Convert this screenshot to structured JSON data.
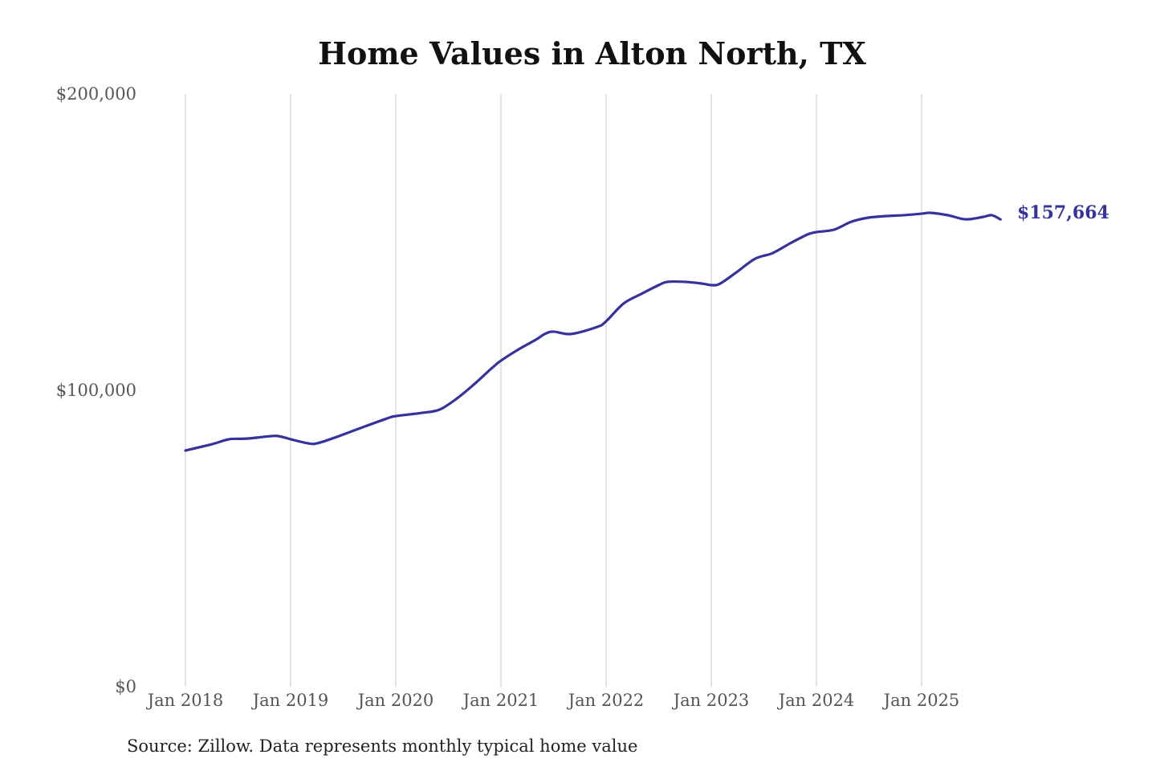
{
  "chart_data": {
    "type": "line",
    "title": "Home Values in Alton North, TX",
    "xlabel": "",
    "ylabel": "",
    "source": "Source: Zillow. Data represents monthly typical home value",
    "ylim": [
      0,
      200000
    ],
    "yticks": [
      0,
      100000,
      200000
    ],
    "ytick_labels": [
      "$0",
      "$100,000",
      "$200,000"
    ],
    "xlim": [
      "2018-01",
      "2025-10"
    ],
    "xtick_labels": [
      "Jan 2018",
      "Jan 2019",
      "Jan 2020",
      "Jan 2021",
      "Jan 2022",
      "Jan 2023",
      "Jan 2024",
      "Jan 2025"
    ],
    "grid": "vertical",
    "line_color": "#35339b",
    "end_label": "$157,664",
    "series": [
      {
        "x": [
          "2018-01",
          "2018-04",
          "2018-06",
          "2018-08",
          "2018-11",
          "2018-12",
          "2019-01",
          "2019-03",
          "2019-04",
          "2019-06",
          "2019-09",
          "2019-12",
          "2020-01",
          "2020-04",
          "2020-06",
          "2020-08",
          "2020-10",
          "2020-12",
          "2021-01",
          "2021-03",
          "2021-05",
          "2021-06",
          "2021-07",
          "2021-09",
          "2021-12",
          "2022-01",
          "2022-03",
          "2022-05",
          "2022-07",
          "2022-08",
          "2022-10",
          "2022-12",
          "2023-01",
          "2023-02",
          "2023-04",
          "2023-06",
          "2023-08",
          "2023-10",
          "2023-12",
          "2024-01",
          "2024-03",
          "2024-05",
          "2024-07",
          "2024-09",
          "2024-11",
          "2025-01",
          "2025-02",
          "2025-04",
          "2025-06",
          "2025-08",
          "2025-09",
          "2025-10"
        ],
        "values": [
          79700,
          81800,
          83500,
          83700,
          84600,
          84300,
          83500,
          82100,
          82100,
          84000,
          87300,
          90500,
          91300,
          92400,
          93500,
          97300,
          102200,
          107600,
          110000,
          113800,
          117100,
          119000,
          119800,
          119000,
          121400,
          123300,
          129300,
          132500,
          135500,
          136600,
          136600,
          136000,
          135500,
          136000,
          140100,
          144400,
          146300,
          149600,
          152600,
          153400,
          154200,
          156900,
          158300,
          158800,
          159100,
          159600,
          159900,
          159100,
          157700,
          158500,
          159100,
          157664
        ]
      }
    ]
  }
}
